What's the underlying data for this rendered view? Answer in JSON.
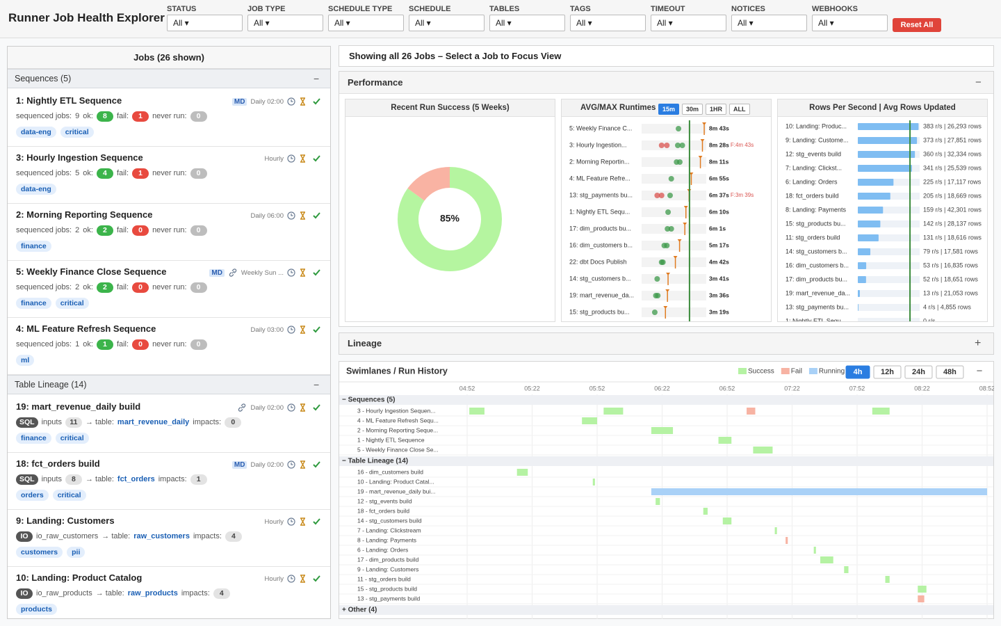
{
  "header": {
    "title": "Runner Job Health Explorer",
    "filters": [
      {
        "label": "STATUS",
        "value": "All ▾"
      },
      {
        "label": "JOB TYPE",
        "value": "All ▾"
      },
      {
        "label": "SCHEDULE TYPE",
        "value": "All ▾"
      },
      {
        "label": "SCHEDULE",
        "value": "All ▾"
      },
      {
        "label": "TABLES",
        "value": "All ▾"
      },
      {
        "label": "TAGS",
        "value": "All ▾"
      },
      {
        "label": "TIMEOUT",
        "value": "All ▾"
      },
      {
        "label": "NOTICES",
        "value": "All ▾"
      },
      {
        "label": "WEBHOOKS",
        "value": "All ▾"
      }
    ],
    "reset": "Reset All"
  },
  "jobs_panel": {
    "title": "Jobs (26 shown)",
    "labels": {
      "sequenced": "sequenced jobs:",
      "ok": "ok:",
      "fail": "fail:",
      "never": "never run:",
      "inputs": "inputs",
      "to_table": "→ table:",
      "impacts": "impacts:"
    },
    "groups": [
      {
        "title": "Sequences (5)",
        "toggle": "−",
        "jobs": [
          {
            "title": "1: Nightly ETL Sequence",
            "badge": "MD",
            "schedule": "Daily 02:00",
            "sequenced": 9,
            "ok": 8,
            "fail": 1,
            "never": 0,
            "tags": [
              "data-eng",
              "critical"
            ]
          },
          {
            "title": "3: Hourly Ingestion Sequence",
            "schedule": "Hourly",
            "sequenced": 5,
            "ok": 4,
            "fail": 1,
            "never": 0,
            "tags": [
              "data-eng"
            ]
          },
          {
            "title": "2: Morning Reporting Sequence",
            "schedule": "Daily 06:00",
            "sequenced": 2,
            "ok": 2,
            "fail": 0,
            "never": 0,
            "tags": [
              "finance"
            ]
          },
          {
            "title": "5: Weekly Finance Close Sequence",
            "badge": "MD",
            "link": true,
            "schedule": "Weekly Sun ...",
            "sequenced": 2,
            "ok": 2,
            "fail": 0,
            "never": 0,
            "tags": [
              "finance",
              "critical"
            ]
          },
          {
            "title": "4: ML Feature Refresh Sequence",
            "schedule": "Daily 03:00",
            "sequenced": 1,
            "ok": 1,
            "fail": 0,
            "never": 0,
            "tags": [
              "ml"
            ]
          }
        ]
      },
      {
        "title": "Table Lineage (14)",
        "toggle": "−",
        "jobs": [
          {
            "title": "19: mart_revenue_daily build",
            "link": true,
            "schedule": "Daily 02:00",
            "kind": "SQL",
            "inputs": 11,
            "table": "mart_revenue_daily",
            "impacts": 0,
            "tags": [
              "finance",
              "critical"
            ]
          },
          {
            "title": "18: fct_orders build",
            "badge": "MD",
            "schedule": "Daily 02:00",
            "kind": "SQL",
            "inputs": 8,
            "table": "fct_orders",
            "impacts": 1,
            "tags": [
              "orders",
              "critical"
            ]
          },
          {
            "title": "9: Landing: Customers",
            "schedule": "Hourly",
            "kind": "IO",
            "source": "io_raw_customers",
            "table": "raw_customers",
            "impacts": 4,
            "tags": [
              "customers",
              "pii"
            ]
          },
          {
            "title": "10: Landing: Product Catalog",
            "schedule": "Hourly",
            "kind": "IO",
            "source": "io_raw_products",
            "table": "raw_products",
            "impacts": 4,
            "tags": [
              "products"
            ]
          }
        ]
      }
    ]
  },
  "banner": "Showing all 26 Jobs – Select a Job to Focus View",
  "performance": {
    "title": "Performance",
    "toggle": "−",
    "success_chart": {
      "type": "pie",
      "title": "Recent Run Success (5 Weeks)",
      "values": [
        85,
        15
      ],
      "colors": [
        "#b5f5a0",
        "#f9b3a3"
      ],
      "center_label": "85%"
    },
    "runtimes": {
      "type": "dot",
      "title": "AVG/MAX Runtimes",
      "ranges": [
        "15m",
        "30m",
        "1HR",
        "ALL"
      ],
      "active": 0,
      "xlim": [
        0,
        540
      ],
      "avg": 400,
      "rows": [
        {
          "name": "5: Weekly Finance C...",
          "runs": [
            308
          ],
          "failed": [
            false
          ],
          "max": 523,
          "max_label": "8m 43s"
        },
        {
          "name": "3: Hourly Ingestion...",
          "runs": [
            167,
            211,
            302,
            340
          ],
          "failed": [
            true,
            true,
            false,
            false
          ],
          "max": 508,
          "max_label": "8m 28s",
          "fail_label": "F:4m 43s"
        },
        {
          "name": "2: Morning Reportin...",
          "runs": [
            292,
            319
          ],
          "failed": [
            false,
            false
          ],
          "max": 491,
          "max_label": "8m 11s"
        },
        {
          "name": "4: ML Feature Refre...",
          "runs": [
            248
          ],
          "failed": [
            false
          ],
          "max": 415,
          "max_label": "6m 55s"
        },
        {
          "name": "13: stg_payments bu...",
          "runs": [
            130,
            167,
            238
          ],
          "failed": [
            true,
            true,
            false
          ],
          "max": 397,
          "max_label": "6m 37s",
          "fail_label": "F:3m 39s"
        },
        {
          "name": "1: Nightly ETL Sequ...",
          "runs": [
            221
          ],
          "failed": [
            false
          ],
          "max": 370,
          "max_label": "6m 10s"
        },
        {
          "name": "17: dim_products bu...",
          "runs": [
            216,
            248
          ],
          "failed": [
            false,
            false
          ],
          "max": 361,
          "max_label": "6m 1s"
        },
        {
          "name": "16: dim_customers b...",
          "runs": [
            189,
            211
          ],
          "failed": [
            false,
            false
          ],
          "max": 317,
          "max_label": "5m 17s"
        },
        {
          "name": "22: dbt Docs Publish",
          "runs": [
            167,
            178
          ],
          "failed": [
            false,
            false
          ],
          "max": 282,
          "max_label": "4m 42s"
        },
        {
          "name": "14: stg_customers b...",
          "runs": [
            130
          ],
          "failed": [
            false
          ],
          "max": 221,
          "max_label": "3m 41s"
        },
        {
          "name": "19: mart_revenue_da...",
          "runs": [
            119,
            135
          ],
          "failed": [
            false,
            false
          ],
          "max": 216,
          "max_label": "3m 36s"
        },
        {
          "name": "15: stg_products bu...",
          "runs": [
            110
          ],
          "failed": [
            false
          ],
          "max": 199,
          "max_label": "3m 19s"
        }
      ]
    },
    "rows_per_second": {
      "type": "bar",
      "title": "Rows Per Second | Avg Rows Updated",
      "xlim": [
        0,
        390
      ],
      "avg": 329,
      "color": "#7fbdf2",
      "rows": [
        {
          "name": "10: Landing: Produc...",
          "value": 383,
          "label": "383 r/s | 26,293 rows"
        },
        {
          "name": "9: Landing: Custome...",
          "value": 373,
          "label": "373 r/s | 27,851 rows"
        },
        {
          "name": "12: stg_events build",
          "value": 360,
          "label": "360 r/s | 32,334 rows"
        },
        {
          "name": "7: Landing: Clickst...",
          "value": 341,
          "label": "341 r/s | 25,539 rows"
        },
        {
          "name": "6: Landing: Orders",
          "value": 225,
          "label": "225 r/s | 17,117 rows"
        },
        {
          "name": "18: fct_orders build",
          "value": 205,
          "label": "205 r/s | 18,669 rows"
        },
        {
          "name": "8: Landing: Payments",
          "value": 159,
          "label": "159 r/s | 42,301 rows"
        },
        {
          "name": "15: stg_products bu...",
          "value": 142,
          "label": "142 r/s | 28,137 rows"
        },
        {
          "name": "11: stg_orders build",
          "value": 131,
          "label": "131 r/s | 18,616 rows"
        },
        {
          "name": "14: stg_customers b...",
          "value": 79,
          "label": "79 r/s | 17,581 rows"
        },
        {
          "name": "16: dim_customers b...",
          "value": 53,
          "label": "53 r/s | 16,835 rows"
        },
        {
          "name": "17: dim_products bu...",
          "value": 52,
          "label": "52 r/s | 18,651 rows"
        },
        {
          "name": "19: mart_revenue_da...",
          "value": 13,
          "label": "13 r/s | 21,053 rows"
        },
        {
          "name": "13: stg_payments bu...",
          "value": 4,
          "label": "4 r/s | 4,855 rows"
        },
        {
          "name": "1: Nightly ETL Sequ...",
          "value": 0,
          "label": "0 r/s"
        }
      ]
    }
  },
  "lineage": {
    "title": "Lineage",
    "toggle": "+"
  },
  "swimlanes": {
    "type": "gantt",
    "title": "Swimlanes / Run History",
    "toggle": "−",
    "legend": [
      {
        "name": "Success",
        "color": "#b5f2a3"
      },
      {
        "name": "Fail",
        "color": "#f7b3a3"
      },
      {
        "name": "Running",
        "color": "#a9d1f7"
      }
    ],
    "ranges": [
      "4h",
      "12h",
      "24h",
      "48h"
    ],
    "active": 0,
    "xlim": [
      "04:52",
      "08:52"
    ],
    "xticks": [
      "04:52",
      "05:22",
      "05:52",
      "06:22",
      "06:52",
      "07:22",
      "07:52",
      "08:22",
      "08:52"
    ],
    "groups": [
      {
        "title": "− Sequences (5)",
        "rows": [
          {
            "name": "3 - Hourly Ingestion Sequen...",
            "runs": [
              {
                "start": "04:53",
                "end": "05:00",
                "status": "Success"
              },
              {
                "start": "05:55",
                "end": "06:04",
                "status": "Success"
              },
              {
                "start": "07:01",
                "end": "07:05",
                "status": "Fail"
              },
              {
                "start": "07:59",
                "end": "08:07",
                "status": "Success"
              }
            ]
          },
          {
            "name": "4 - ML Feature Refresh Sequ...",
            "runs": [
              {
                "start": "05:45",
                "end": "05:52",
                "status": "Success"
              }
            ]
          },
          {
            "name": "2 - Morning Reporting Seque...",
            "runs": [
              {
                "start": "06:17",
                "end": "06:27",
                "status": "Success"
              }
            ]
          },
          {
            "name": "1 - Nightly ETL Sequence",
            "runs": [
              {
                "start": "06:48",
                "end": "06:54",
                "status": "Success"
              }
            ]
          },
          {
            "name": "5 - Weekly Finance Close Se...",
            "runs": [
              {
                "start": "07:04",
                "end": "07:13",
                "status": "Success"
              }
            ]
          }
        ]
      },
      {
        "title": "− Table Lineage (14)",
        "rows": [
          {
            "name": "16 - dim_customers build",
            "runs": [
              {
                "start": "05:15",
                "end": "05:20",
                "status": "Success"
              }
            ]
          },
          {
            "name": "10 - Landing: Product Catal...",
            "runs": [
              {
                "start": "05:50",
                "end": "05:51",
                "status": "Success"
              }
            ]
          },
          {
            "name": "19 - mart_revenue_daily bui...",
            "runs": [
              {
                "start": "06:17",
                "end": "08:52",
                "status": "Running"
              }
            ]
          },
          {
            "name": "12 - stg_events build",
            "runs": [
              {
                "start": "06:19",
                "end": "06:21",
                "status": "Success"
              }
            ]
          },
          {
            "name": "18 - fct_orders build",
            "runs": [
              {
                "start": "06:41",
                "end": "06:43",
                "status": "Success"
              }
            ]
          },
          {
            "name": "14 - stg_customers build",
            "runs": [
              {
                "start": "06:50",
                "end": "06:54",
                "status": "Success"
              }
            ]
          },
          {
            "name": "7 - Landing: Clickstream",
            "runs": [
              {
                "start": "07:14",
                "end": "07:15",
                "status": "Success"
              }
            ]
          },
          {
            "name": "8 - Landing: Payments",
            "runs": [
              {
                "start": "07:19",
                "end": "07:20",
                "status": "Fail"
              }
            ]
          },
          {
            "name": "6 - Landing: Orders",
            "runs": [
              {
                "start": "07:32",
                "end": "07:33",
                "status": "Success"
              }
            ]
          },
          {
            "name": "17 - dim_products build",
            "runs": [
              {
                "start": "07:35",
                "end": "07:41",
                "status": "Success"
              }
            ]
          },
          {
            "name": "9 - Landing: Customers",
            "runs": [
              {
                "start": "07:46",
                "end": "07:48",
                "status": "Success"
              }
            ]
          },
          {
            "name": "11 - stg_orders build",
            "runs": [
              {
                "start": "08:05",
                "end": "08:07",
                "status": "Success"
              }
            ]
          },
          {
            "name": "15 - stg_products build",
            "runs": [
              {
                "start": "08:20",
                "end": "08:24",
                "status": "Success"
              }
            ]
          },
          {
            "name": "13 - stg_payments build",
            "runs": [
              {
                "start": "08:20",
                "end": "08:23",
                "status": "Fail"
              }
            ]
          }
        ]
      },
      {
        "title": "+ Other (4)",
        "rows": []
      }
    ]
  }
}
